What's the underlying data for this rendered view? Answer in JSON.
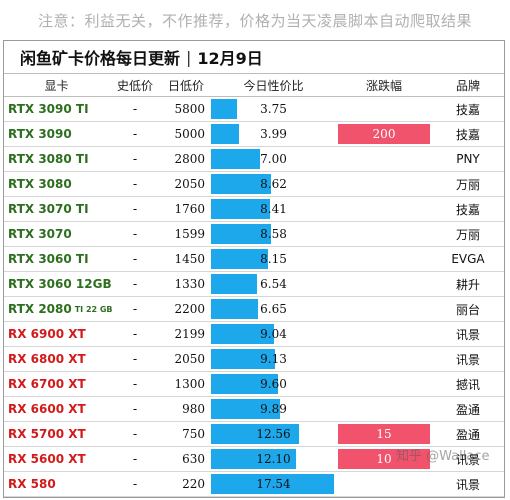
{
  "notice": "注意：利益无关，不作推荐，价格为当天凌晨脚本自动爬取结果",
  "title": {
    "main": "闲鱼矿卡价格每日更新",
    "separator": "|",
    "date": "12月9日"
  },
  "headers": {
    "card": "显卡",
    "low": "史低价",
    "day": "日低价",
    "perf": "今日性价比",
    "change": "涨跌幅",
    "brand": "品牌"
  },
  "colors": {
    "nvidia": "#2d6e1f",
    "amd": "#d11a1a",
    "bar": "#1ea8ec",
    "change_box": "#f1536c"
  },
  "rows": [
    {
      "card": "RTX 3090 TI",
      "vendor": "nvidia",
      "low": "-",
      "day": "5800",
      "perf": "3.75",
      "change": "",
      "brand": "技嘉"
    },
    {
      "card": "RTX 3090",
      "vendor": "nvidia",
      "low": "-",
      "day": "5000",
      "perf": "3.99",
      "change": "200",
      "brand": "技嘉"
    },
    {
      "card": "RTX 3080 TI",
      "vendor": "nvidia",
      "low": "-",
      "day": "2800",
      "perf": "7.00",
      "change": "",
      "brand": "PNY"
    },
    {
      "card": "RTX 3080",
      "vendor": "nvidia",
      "low": "-",
      "day": "2050",
      "perf": "8.62",
      "change": "",
      "brand": "万丽"
    },
    {
      "card": "RTX 3070 TI",
      "vendor": "nvidia",
      "low": "-",
      "day": "1760",
      "perf": "8.41",
      "change": "",
      "brand": "技嘉"
    },
    {
      "card": "RTX 3070",
      "vendor": "nvidia",
      "low": "-",
      "day": "1599",
      "perf": "8.58",
      "change": "",
      "brand": "万丽"
    },
    {
      "card": "RTX 3060 TI",
      "vendor": "nvidia",
      "low": "-",
      "day": "1450",
      "perf": "8.15",
      "change": "",
      "brand": "EVGA"
    },
    {
      "card": "RTX 3060 12GB",
      "vendor": "nvidia",
      "low": "-",
      "day": "1330",
      "perf": "6.54",
      "change": "",
      "brand": "耕升"
    },
    {
      "card": "RTX 2080",
      "card_sub": "TI 22 GB",
      "vendor": "nvidia",
      "low": "-",
      "day": "2200",
      "perf": "6.65",
      "change": "",
      "brand": "丽台"
    },
    {
      "card": "RX 6900 XT",
      "vendor": "amd",
      "low": "-",
      "day": "2199",
      "perf": "9.04",
      "change": "",
      "brand": "讯景"
    },
    {
      "card": "RX 6800 XT",
      "vendor": "amd",
      "low": "-",
      "day": "2050",
      "perf": "9.13",
      "change": "",
      "brand": "讯景"
    },
    {
      "card": "RX 6700 XT",
      "vendor": "amd",
      "low": "-",
      "day": "1300",
      "perf": "9.60",
      "change": "",
      "brand": "撼讯"
    },
    {
      "card": "RX 6600 XT",
      "vendor": "amd",
      "low": "-",
      "day": "980",
      "perf": "9.89",
      "change": "",
      "brand": "盈通"
    },
    {
      "card": "RX 5700 XT",
      "vendor": "amd",
      "low": "-",
      "day": "750",
      "perf": "12.56",
      "change": "15",
      "brand": "盈通"
    },
    {
      "card": "RX 5600 XT",
      "vendor": "amd",
      "low": "-",
      "day": "630",
      "perf": "12.10",
      "change": "10",
      "brand": "讯景"
    },
    {
      "card": "RX 580",
      "vendor": "amd",
      "low": "-",
      "day": "220",
      "perf": "17.54",
      "change": "",
      "brand": "讯景"
    }
  ],
  "perf_scale_max": 17.54,
  "watermark": "知乎 @Wallace"
}
